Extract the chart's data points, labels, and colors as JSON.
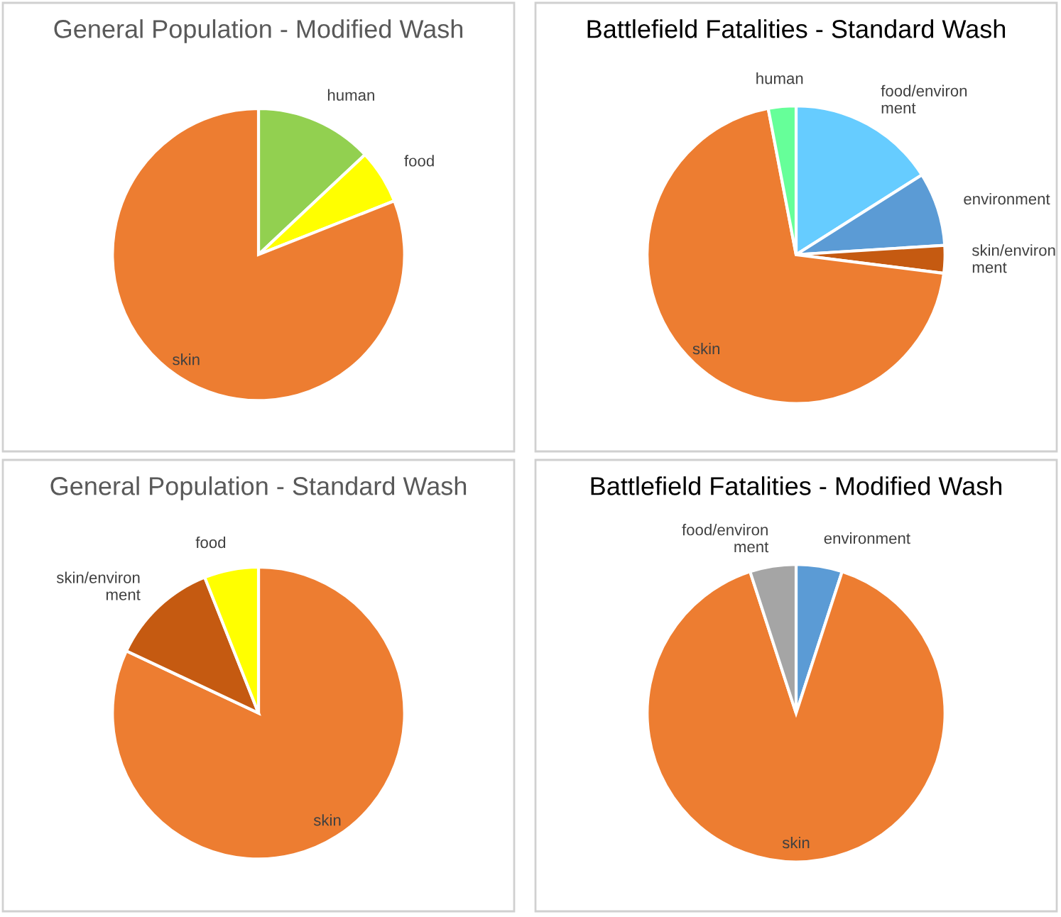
{
  "chart_data": [
    {
      "type": "pie",
      "title": "General Population - Modified Wash",
      "categories": [
        "human",
        "food",
        "skin"
      ],
      "values": [
        13,
        6,
        81
      ],
      "colors": [
        "#92d050",
        "#ffff00",
        "#ed7d31"
      ]
    },
    {
      "type": "pie",
      "title": "Battlefield Fatalities - Standard Wash",
      "categories": [
        "food/environment",
        "environment",
        "skin/environment",
        "skin",
        "human"
      ],
      "values": [
        16,
        8,
        3,
        70,
        3
      ],
      "colors": [
        "#66ccff",
        "#5b9bd5",
        "#c55a11",
        "#ed7d31",
        "#66ff99"
      ]
    },
    {
      "type": "pie",
      "title": "General Population - Standard Wash",
      "categories": [
        "skin",
        "skin/environment",
        "food"
      ],
      "values": [
        82,
        12,
        6
      ],
      "colors": [
        "#ed7d31",
        "#c55a11",
        "#ffff00"
      ]
    },
    {
      "type": "pie",
      "title": "Battlefield Fatalities - Modified Wash",
      "categories": [
        "environment",
        "skin",
        "food/environment"
      ],
      "values": [
        5,
        90,
        5
      ],
      "colors": [
        "#5b9bd5",
        "#ed7d31",
        "#a5a5a5"
      ]
    }
  ]
}
